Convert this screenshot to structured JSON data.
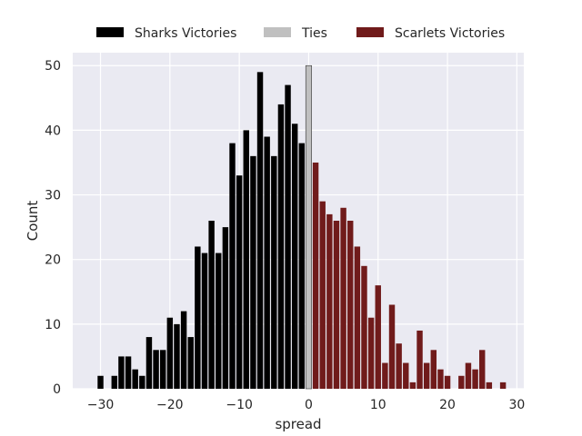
{
  "chart_data": {
    "type": "bar",
    "title": "",
    "xlabel": "spread",
    "ylabel": "Count",
    "xlim": [
      -34,
      31
    ],
    "ylim": [
      0,
      52
    ],
    "xticks": [
      -30,
      -20,
      -10,
      0,
      10,
      20,
      30
    ],
    "xtick_labels": [
      "−30",
      "−20",
      "−10",
      "0",
      "10",
      "20",
      "30"
    ],
    "yticks": [
      0,
      10,
      20,
      30,
      40,
      50
    ],
    "ytick_labels": [
      "0",
      "10",
      "20",
      "30",
      "40",
      "50"
    ],
    "grid": true,
    "legend_position": "top-center",
    "background_color": "#eaeaf2",
    "bin_width": 1,
    "series": [
      {
        "name": "Sharks Victories",
        "color": "#000000",
        "x": [
          -30,
          -28,
          -27,
          -26,
          -25,
          -24,
          -23,
          -22,
          -21,
          -20,
          -19,
          -18,
          -17,
          -16,
          -15,
          -14,
          -13,
          -12,
          -11,
          -10,
          -9,
          -8,
          -7,
          -6,
          -5,
          -4,
          -3,
          -2,
          -1
        ],
        "values": [
          2,
          2,
          5,
          5,
          3,
          2,
          8,
          6,
          6,
          11,
          10,
          12,
          8,
          22,
          21,
          26,
          21,
          25,
          38,
          33,
          40,
          36,
          49,
          39,
          36,
          44,
          47,
          41,
          38
        ]
      },
      {
        "name": "Ties",
        "color": "#c0c0c0",
        "x": [
          0
        ],
        "values": [
          50
        ]
      },
      {
        "name": "Scarlets Victories",
        "color": "#701b1b",
        "x": [
          1,
          2,
          3,
          4,
          5,
          6,
          7,
          8,
          9,
          10,
          11,
          12,
          13,
          14,
          15,
          16,
          17,
          18,
          19,
          20,
          22,
          23,
          24,
          25,
          26,
          28
        ],
        "values": [
          35,
          29,
          27,
          26,
          28,
          26,
          22,
          19,
          11,
          16,
          4,
          13,
          7,
          4,
          1,
          9,
          4,
          6,
          3,
          2,
          2,
          4,
          3,
          6,
          1,
          1
        ]
      }
    ]
  }
}
